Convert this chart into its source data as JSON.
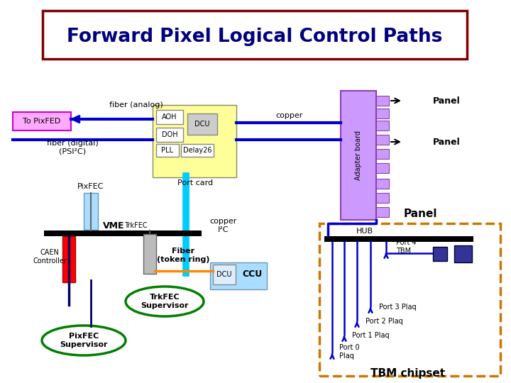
{
  "title": "Forward Pixel Logical Control Paths",
  "title_color": "#000080",
  "title_box_color": "#800000",
  "bg_color": "#ffffff",
  "port_card_bg": "#ffff99",
  "adapter_board_color": "#cc99ff",
  "adapter_board_label": "Adapter board",
  "port_card_label": "Port card",
  "to_pixfed_label": "To PixFED",
  "to_pixfed_bg": "#ffaaff",
  "fiber_analog_label": "fiber (analog)",
  "fiber_digital_label": "fiber (digital)\n(PSI²C)",
  "copper_label": "copper",
  "pixfec_label": "PixFEC",
  "pixfec_bg": "#aaddff",
  "vme_label": "VME",
  "caen_label": "CAEN\nController",
  "caen_color": "#ff0000",
  "trkfec_label": "TrkFEC",
  "trkfec_color": "#bbbbbb",
  "fiber_ring_label": "Fiber\n(token ring)",
  "fiber_ring_color": "#ff8800",
  "dcu_ccu_bg": "#aaddff",
  "trk_supervisor_label": "TrkFEC\nSupervisor",
  "pix_supervisor_label": "PixFEC\nSupervisor",
  "hub_label": "HUB",
  "tbm_label": "TBM chipset",
  "tbm_box_color": "#cc7700",
  "panel_label": "Panel",
  "port_labels": [
    "Port 4\nTBM",
    "Port 3 Plaq",
    "Port 2 Plaq",
    "Port 1 Plaq",
    "Port 0\nPlaq"
  ],
  "copper_i2c_label": "copper\nI²C",
  "arrow_color": "#0000cc",
  "line_color": "#0000cc",
  "cyan_color": "#00ccff"
}
